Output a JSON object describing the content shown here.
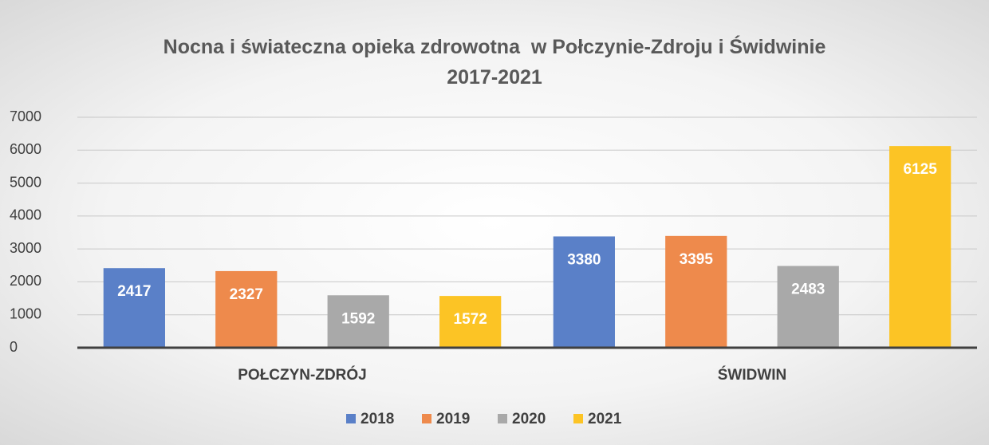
{
  "chart_data": {
    "type": "bar",
    "title": "Nocna i świateczna opieka zdrowotna  w Połczynie-Zdroju i Świdwinie 2017-2021",
    "categories": [
      "POŁCZYN-ZDRÓJ",
      "ŚWIDWIN"
    ],
    "series": [
      {
        "name": "2018",
        "color": "#5a80c8",
        "values": [
          2417,
          3380
        ]
      },
      {
        "name": "2019",
        "color": "#ee8a4c",
        "values": [
          2327,
          3395
        ]
      },
      {
        "name": "2020",
        "color": "#a9a9a9",
        "values": [
          1592,
          2483
        ]
      },
      {
        "name": "2021",
        "color": "#fcc425",
        "values": [
          1572,
          6125
        ]
      }
    ],
    "ylim": [
      0,
      7000
    ],
    "yticks": [
      0,
      1000,
      2000,
      3000,
      4000,
      5000,
      6000,
      7000
    ],
    "grid": true,
    "legend": "bottom"
  }
}
